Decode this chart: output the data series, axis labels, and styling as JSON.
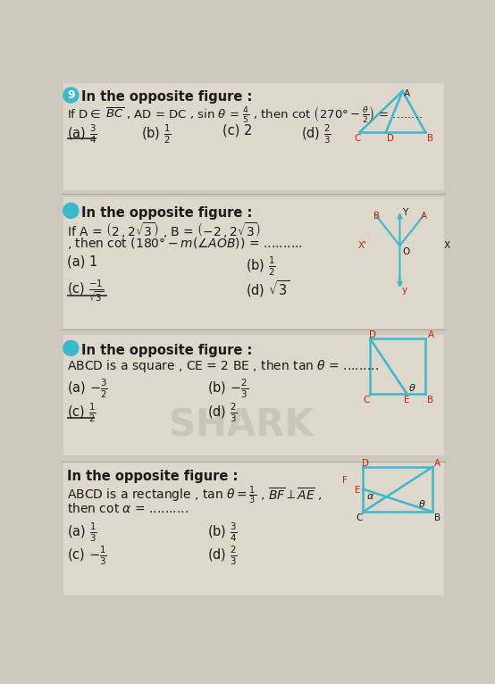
{
  "bg_color": "#cfc8bc",
  "text_color": "#1a1a1a",
  "cyan_color": "#3ab8cc",
  "red_color": "#cc2200",
  "bold_color": "#111111",
  "section_bg": "#e8e2d8",
  "q1_header": "In the opposite figure :",
  "q2_header": "In the opposite figure :",
  "q3_header": "In the opposite figure :",
  "q4_header": "In the opposite figure :"
}
